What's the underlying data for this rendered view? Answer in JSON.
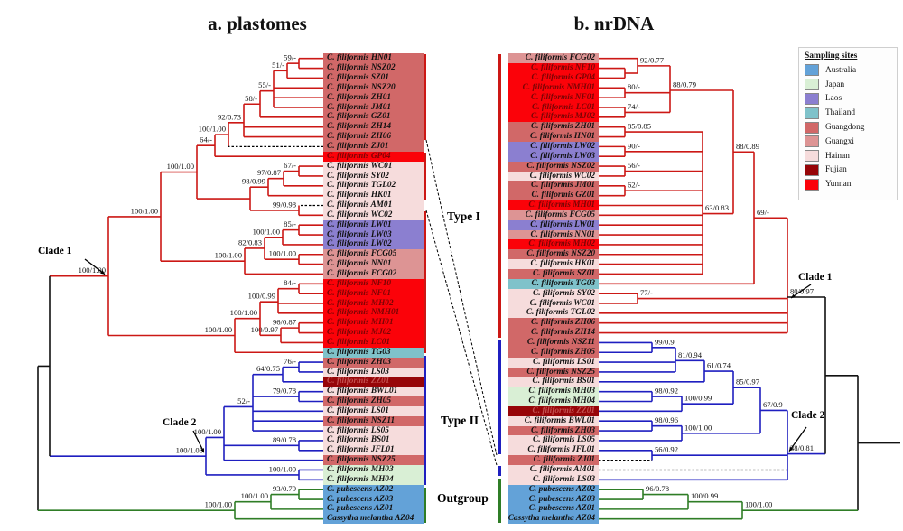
{
  "titles": {
    "panel_a": "a. plastomes",
    "panel_b": "b. nrDNA"
  },
  "legend": {
    "title": "Sampling sites",
    "items": [
      {
        "key": "australia",
        "label": "Australia",
        "color": "#63a2d8"
      },
      {
        "key": "japan",
        "label": "Japan",
        "color": "#d9efd5"
      },
      {
        "key": "laos",
        "label": "Laos",
        "color": "#8b7fd0"
      },
      {
        "key": "thailand",
        "label": "Thailand",
        "color": "#7fc2ca"
      },
      {
        "key": "guangdong",
        "label": "Guangdong",
        "color": "#d16868"
      },
      {
        "key": "guangxi",
        "label": "Guangxi",
        "color": "#dd9494"
      },
      {
        "key": "hainan",
        "label": "Hainan",
        "color": "#f6dcdc"
      },
      {
        "key": "fujian",
        "label": "Fujian",
        "color": "#970508"
      },
      {
        "key": "yunnan",
        "label": "Yunnan",
        "color": "#fb0209"
      }
    ]
  },
  "colors": {
    "clade1": "#cc1815",
    "clade2": "#1f1fc0",
    "outgroup": "#2f7d26",
    "backbone": "#111111"
  },
  "annotations": {
    "clade1": "Clade 1",
    "clade2": "Clade 2",
    "type1": "Type I",
    "type2": "Type II",
    "outgroup": "Outgroup"
  },
  "panel_a": {
    "taxa": [
      {
        "name": "C. filiformis HN01",
        "site": "guangdong"
      },
      {
        "name": "C. filiformis NSZ02",
        "site": "guangdong"
      },
      {
        "name": "C. filiformis SZ01",
        "site": "guangdong"
      },
      {
        "name": "C. filiformis NSZ20",
        "site": "guangdong"
      },
      {
        "name": "C. filiformis ZH01",
        "site": "guangdong"
      },
      {
        "name": "C. filiformis JM01",
        "site": "guangdong"
      },
      {
        "name": "C. filiformis GZ01",
        "site": "guangdong"
      },
      {
        "name": "C. filiformis ZH14",
        "site": "guangdong"
      },
      {
        "name": "C. filiformis ZH06",
        "site": "guangdong"
      },
      {
        "name": "C. filiformis ZJ01",
        "site": "guangdong"
      },
      {
        "name": "C. filiformis GP04",
        "site": "yunnan"
      },
      {
        "name": "C. filiformis WC01",
        "site": "hainan"
      },
      {
        "name": "C. filiformis SY02",
        "site": "hainan"
      },
      {
        "name": "C. filiformis TGL02",
        "site": "hainan"
      },
      {
        "name": "C. filiformis HK01",
        "site": "hainan"
      },
      {
        "name": "C. filiformis AM01",
        "site": "hainan"
      },
      {
        "name": "C. filiformis WC02",
        "site": "hainan"
      },
      {
        "name": "C. filiformis LW01",
        "site": "laos"
      },
      {
        "name": "C. filiformis LW03",
        "site": "laos"
      },
      {
        "name": "C. filiformis LW02",
        "site": "laos"
      },
      {
        "name": "C. filiformis FCG05",
        "site": "guangxi"
      },
      {
        "name": "C. filiformis NN01",
        "site": "guangxi"
      },
      {
        "name": "C. filiformis FCG02",
        "site": "guangxi"
      },
      {
        "name": "C. filiformis NF10",
        "site": "yunnan"
      },
      {
        "name": "C. filiformis NF01",
        "site": "yunnan"
      },
      {
        "name": "C. filiformis MH02",
        "site": "yunnan"
      },
      {
        "name": "C. filiformis NMH01",
        "site": "yunnan"
      },
      {
        "name": "C. filiformis MH01",
        "site": "yunnan"
      },
      {
        "name": "C. filiformis MJ02",
        "site": "yunnan"
      },
      {
        "name": "C. filiformis LC01",
        "site": "yunnan"
      },
      {
        "name": "C. filiformis TG03",
        "site": "thailand"
      },
      {
        "name": "C. filiformis ZH03",
        "site": "guangdong"
      },
      {
        "name": "C. filiformis LS03",
        "site": "hainan"
      },
      {
        "name": "C. filiformis ZZ01",
        "site": "fujian"
      },
      {
        "name": "C. filiformis BWL01",
        "site": "hainan"
      },
      {
        "name": "C. filiformis ZH05",
        "site": "guangdong"
      },
      {
        "name": "C. filiformis LS01",
        "site": "hainan"
      },
      {
        "name": "C. filiformis NSZ11",
        "site": "guangdong"
      },
      {
        "name": "C. filiformis LS05",
        "site": "hainan"
      },
      {
        "name": "C. filiformis BS01",
        "site": "hainan"
      },
      {
        "name": "C. filiformis JFL01",
        "site": "hainan"
      },
      {
        "name": "C. filiformis NSZ25",
        "site": "guangdong"
      },
      {
        "name": "C. filiformis MH03",
        "site": "japan"
      },
      {
        "name": "C. filiformis MH04",
        "site": "japan"
      },
      {
        "name": "C. pubescens AZ02",
        "site": "australia"
      },
      {
        "name": "C. pubescens AZ03",
        "site": "australia"
      },
      {
        "name": "C. pubescens AZ01",
        "site": "australia"
      },
      {
        "name": "Cassytha melantha AZ04",
        "site": "australia"
      }
    ],
    "supports": [
      "59/-",
      "51/-",
      "55/-",
      "58/-",
      "92/0.73",
      "100/1.00",
      "64/-",
      "67/-",
      "97/0.87",
      "98/0.99",
      "99/0.98",
      "",
      "100/1.00",
      "85/-",
      "100/1.00",
      "100/1.00",
      "82/0.83",
      "100/1.00",
      "100/1.00",
      "84/-",
      "100/0.99",
      "96/0.87",
      "100/0.97",
      "100/1.00",
      "100/1.00",
      "100/1.00",
      "76/-",
      "64/0.75",
      "79/0.78",
      "52/-",
      "89/0.78",
      "100/1.00",
      "100/1.00",
      "100/1.00",
      "93/0.79",
      "100/1.00",
      "100/1.00"
    ]
  },
  "panel_b": {
    "taxa": [
      {
        "name": "C. filiformis FCG02",
        "site": "guangxi"
      },
      {
        "name": "C. filiformis NF10",
        "site": "yunnan"
      },
      {
        "name": "C. filiformis GP04",
        "site": "yunnan"
      },
      {
        "name": "C. filiformis NMH01",
        "site": "yunnan"
      },
      {
        "name": "C. filiformis NF01",
        "site": "yunnan"
      },
      {
        "name": "C. filiformis LC01",
        "site": "yunnan"
      },
      {
        "name": "C. filiformis MJ02",
        "site": "yunnan"
      },
      {
        "name": "C. filiformis ZH01",
        "site": "guangdong"
      },
      {
        "name": "C. filiformis HN01",
        "site": "guangdong"
      },
      {
        "name": "C. filiformis LW02",
        "site": "laos"
      },
      {
        "name": "C. filiformis LW03",
        "site": "laos"
      },
      {
        "name": "C. filiformis NSZ02",
        "site": "guangdong"
      },
      {
        "name": "C. filiformis WC02",
        "site": "hainan"
      },
      {
        "name": "C. filiformis JM01",
        "site": "guangdong"
      },
      {
        "name": "C. filiformis GZ01",
        "site": "guangdong"
      },
      {
        "name": "C. filiformis MH01",
        "site": "yunnan"
      },
      {
        "name": "C. filiformis FCG05",
        "site": "guangxi"
      },
      {
        "name": "C. filiformis LW01",
        "site": "laos"
      },
      {
        "name": "C. filiformis NN01",
        "site": "guangxi"
      },
      {
        "name": "C. filiformis MH02",
        "site": "yunnan"
      },
      {
        "name": "C. filiformis NSZ20",
        "site": "guangdong"
      },
      {
        "name": "C. filiformis HK01",
        "site": "hainan"
      },
      {
        "name": "C. filiformis SZ01",
        "site": "guangdong"
      },
      {
        "name": "C. filiformis TG03",
        "site": "thailand"
      },
      {
        "name": "C. filiformis SY02",
        "site": "hainan"
      },
      {
        "name": "C. filiformis WC01",
        "site": "hainan"
      },
      {
        "name": "C. filiformis TGL02",
        "site": "hainan"
      },
      {
        "name": "C. filiformis ZH06",
        "site": "guangdong"
      },
      {
        "name": "C. filiformis ZH14",
        "site": "guangdong"
      },
      {
        "name": "C. filiformis NSZ11",
        "site": "guangdong"
      },
      {
        "name": "C. filiformis ZH05",
        "site": "guangdong"
      },
      {
        "name": "C. filiformis LS01",
        "site": "hainan"
      },
      {
        "name": "C. filiformis NSZ25",
        "site": "guangdong"
      },
      {
        "name": "C. filiformis BS01",
        "site": "hainan"
      },
      {
        "name": "C. filiformis MH03",
        "site": "japan"
      },
      {
        "name": "C. filiformis MH04",
        "site": "japan"
      },
      {
        "name": "C. filiformis ZZ01",
        "site": "fujian"
      },
      {
        "name": "C. filiformis BWL01",
        "site": "hainan"
      },
      {
        "name": "C. filiformis ZH03",
        "site": "guangdong"
      },
      {
        "name": "C. filiformis LS05",
        "site": "hainan"
      },
      {
        "name": "C. filiformis JFL01",
        "site": "hainan"
      },
      {
        "name": "C. filiformis ZJ01",
        "site": "guangdong"
      },
      {
        "name": "C. filiformis AM01",
        "site": "hainan"
      },
      {
        "name": "C. filiformis LS03",
        "site": "hainan"
      },
      {
        "name": "C. pubescens AZ02",
        "site": "australia"
      },
      {
        "name": "C. pubescens AZ03",
        "site": "australia"
      },
      {
        "name": "C. pubescens AZ01",
        "site": "australia"
      },
      {
        "name": "Cassytha melantha AZ04",
        "site": "australia"
      }
    ],
    "supports": [
      "",
      "92/0.77",
      "80/-",
      "74/-",
      "88/0.79",
      "85/0.85",
      "90/-",
      "56/-",
      "62/-",
      "63/0.83",
      "88/0.89",
      "77/-",
      "69/-",
      "80/0.97",
      "99/0.9",
      "81/0.94",
      "61/0.74",
      "98/0.92",
      "100/0.99",
      "85/0.97",
      "98/0.96",
      "100/1.00",
      "67/0.9",
      "56/0.92",
      "38/0.81",
      "96/0.78",
      "100/0.99",
      "100/1.00"
    ]
  }
}
